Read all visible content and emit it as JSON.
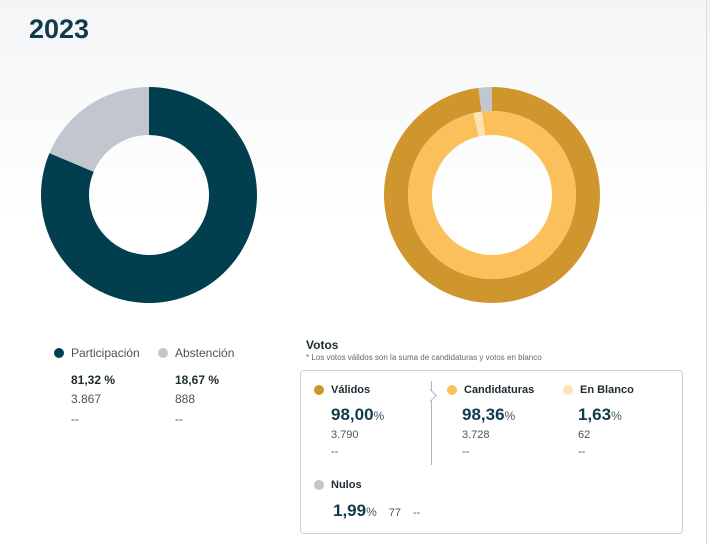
{
  "header": {
    "year": "2023"
  },
  "colors": {
    "participacion": "#023f4e",
    "abstencion": "#c2c6cf",
    "validos": "#d0962e",
    "candidaturas": "#fbbf5b",
    "en_blanco": "#fde3b4",
    "nulos": "#c2c6cf"
  },
  "chart_data": [
    {
      "type": "pie",
      "categories": [
        "Participación",
        "Abstención"
      ],
      "values": [
        81.32,
        18.67
      ]
    },
    {
      "type": "pie",
      "rings": [
        {
          "categories": [
            "Válidos",
            "Nulos"
          ],
          "values": [
            98.0,
            1.99
          ]
        },
        {
          "categories": [
            "Candidaturas",
            "En Blanco"
          ],
          "values": [
            98.36,
            1.63
          ]
        }
      ]
    }
  ],
  "legend_left": {
    "participacion": {
      "label": "Participación",
      "pct": "81,32 %",
      "count": "3.867",
      "extra": "--"
    },
    "abstencion": {
      "label": "Abstención",
      "pct": "18,67 %",
      "count": "888",
      "extra": "--"
    }
  },
  "votos": {
    "title": "Votos",
    "note": "* Los votos válidos son la suma de candidaturas y votos en blanco",
    "validos": {
      "label": "Válidos",
      "pct": "98,00",
      "pct_sign": "%",
      "count": "3.790",
      "extra": "--"
    },
    "candidaturas": {
      "label": "Candidaturas",
      "pct": "98,36",
      "pct_sign": "%",
      "count": "3.728",
      "extra": "--"
    },
    "en_blanco": {
      "label": "En Blanco",
      "pct": "1,63",
      "pct_sign": "%",
      "count": "62",
      "extra": "--"
    },
    "nulos": {
      "label": "Nulos",
      "pct": "1,99",
      "pct_sign": "%",
      "count": "77",
      "extra": "--"
    }
  }
}
